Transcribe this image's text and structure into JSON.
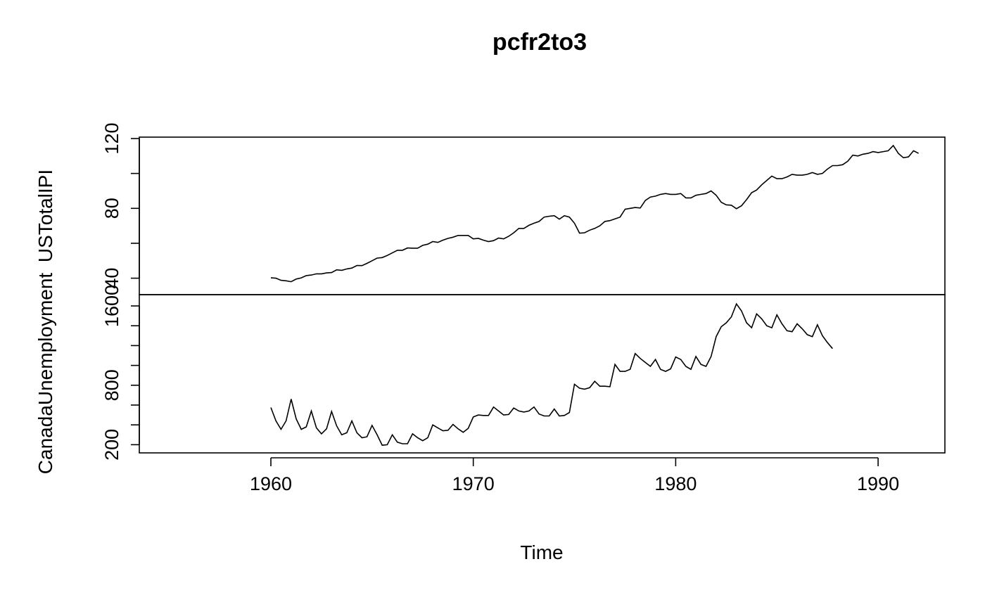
{
  "chart_data": {
    "type": "line",
    "title": "pcfr2to3",
    "xlabel": "Time",
    "xlim": [
      1953.5,
      1993.3
    ],
    "x_ticks": [
      "1960",
      "1970",
      "1980",
      "1990"
    ],
    "grid": false,
    "legend": "none",
    "panels": [
      {
        "ylabel": "USTotalIPI",
        "ylim": [
          35,
          120
        ],
        "y_ticks": [
          "40",
          "80",
          "120"
        ],
        "series": [
          {
            "start": 1960.0,
            "frequency": 4,
            "values": [
              40.2,
              40.0,
              38.8,
              38.5,
              38.0,
              39.5,
              40.2,
              41.5,
              41.8,
              42.5,
              42.5,
              43.0,
              43.2,
              44.8,
              44.5,
              45.3,
              45.8,
              47.3,
              47.2,
              48.5,
              50.0,
              51.5,
              51.8,
              53.0,
              54.5,
              56.0,
              56.0,
              57.3,
              57.2,
              57.2,
              58.8,
              59.5,
              61.0,
              60.5,
              61.8,
              62.8,
              63.5,
              64.5,
              64.5,
              64.5,
              62.5,
              62.8,
              61.8,
              61.0,
              61.5,
              63.0,
              62.5,
              64.0,
              66.0,
              68.5,
              68.5,
              70.3,
              71.5,
              72.5,
              75.0,
              75.5,
              75.8,
              73.8,
              75.8,
              75.0,
              71.5,
              65.8,
              66.0,
              67.5,
              68.5,
              70.0,
              72.5,
              73.0,
              74.0,
              75.0,
              79.5,
              80.0,
              80.5,
              80.2,
              84.5,
              86.5,
              87.0,
              88.0,
              88.5,
              88.0,
              88.0,
              88.5,
              86.0,
              86.0,
              87.5,
              88.0,
              88.5,
              90.0,
              87.5,
              83.5,
              82.0,
              81.8,
              79.8,
              81.5,
              85.0,
              89.0,
              90.5,
              93.5,
              96.0,
              98.5,
              97.0,
              97.0,
              98.0,
              99.5,
              99.0,
              99.0,
              99.5,
              100.5,
              99.5,
              100.0,
              102.5,
              104.5,
              104.5,
              105.0,
              107.0,
              110.5,
              110.0,
              111.0,
              111.5,
              112.5,
              112.0,
              112.5,
              113.0,
              116.0,
              111.5,
              109.0,
              109.5,
              113.0,
              111.5
            ]
          }
        ]
      },
      {
        "ylabel": "CanadaUnemployment",
        "ylim": [
          160,
          1650
        ],
        "y_ticks": [
          "200",
          "800",
          "1600"
        ],
        "series": [
          {
            "start": 1960.0,
            "frequency": 4,
            "values": [
              575,
              440,
              355,
              440,
              660,
              460,
              355,
              380,
              540,
              370,
              310,
              360,
              535,
              390,
              300,
              320,
              440,
              320,
              270,
              280,
              395,
              300,
              195,
              200,
              300,
              225,
              210,
              210,
              310,
              270,
              240,
              270,
              400,
              370,
              340,
              345,
              405,
              360,
              325,
              365,
              480,
              500,
              495,
              495,
              580,
              540,
              500,
              505,
              570,
              540,
              530,
              540,
              580,
              510,
              490,
              490,
              560,
              490,
              495,
              525,
              810,
              770,
              760,
              775,
              840,
              790,
              790,
              785,
              1010,
              940,
              940,
              960,
              1120,
              1070,
              1030,
              990,
              1060,
              960,
              940,
              965,
              1085,
              1060,
              990,
              960,
              1090,
              1010,
              990,
              1090,
              1290,
              1390,
              1430,
              1490,
              1620,
              1550,
              1430,
              1380,
              1520,
              1470,
              1400,
              1380,
              1510,
              1420,
              1350,
              1340,
              1420,
              1370,
              1310,
              1290,
              1410,
              1300,
              1230,
              1170
            ]
          }
        ]
      }
    ]
  }
}
